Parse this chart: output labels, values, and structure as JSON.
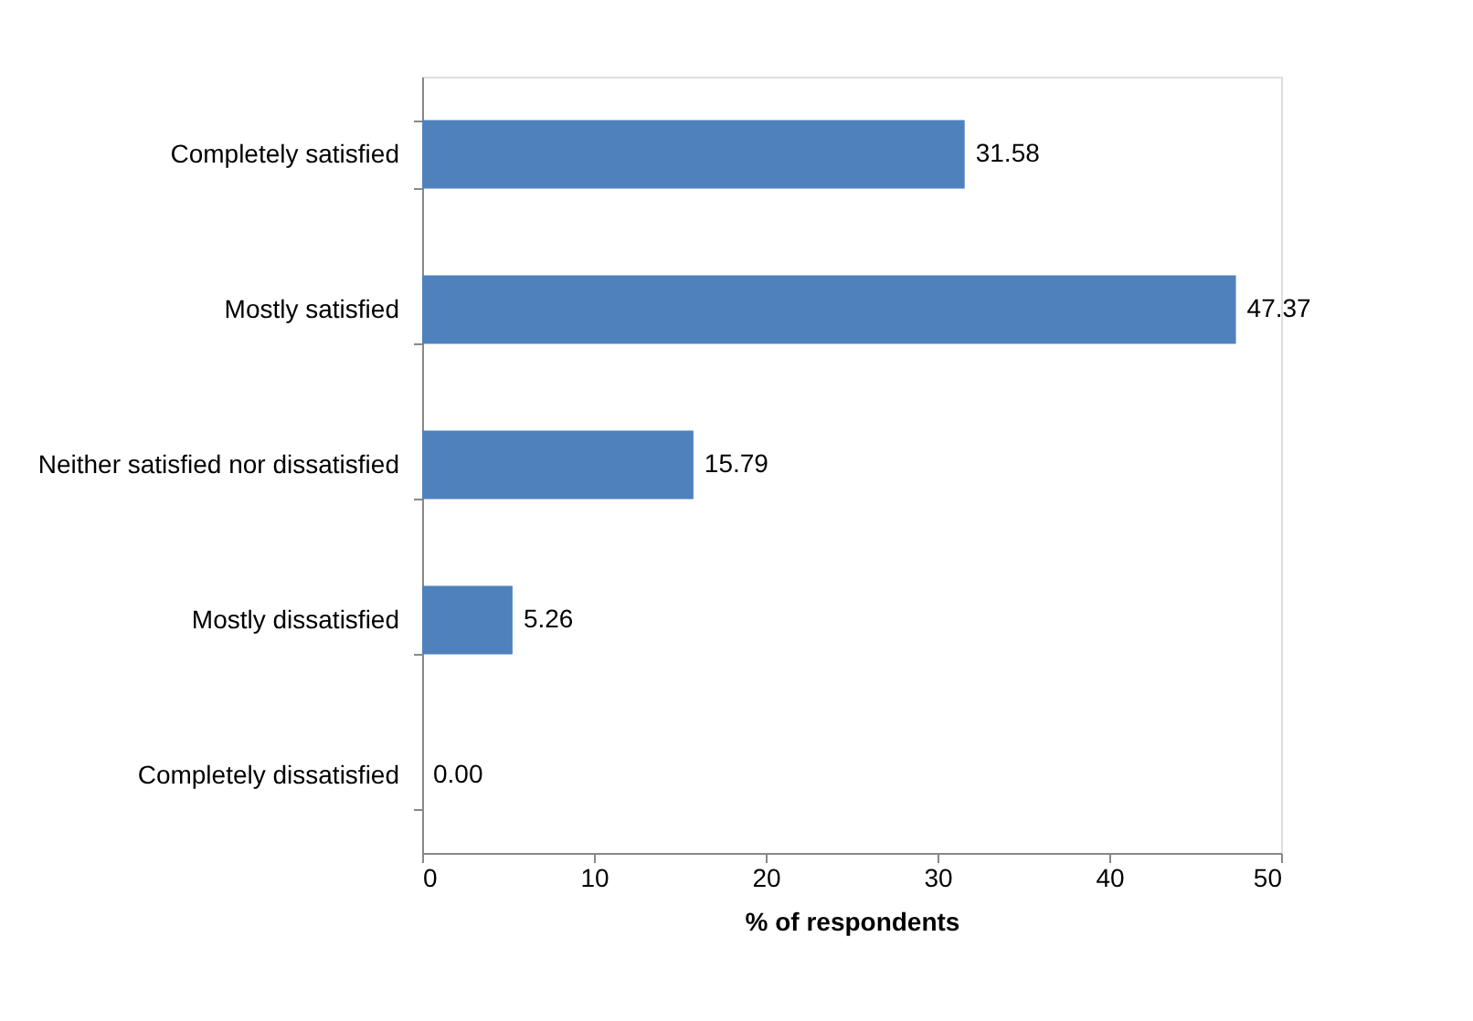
{
  "chart_data": {
    "type": "bar",
    "orientation": "horizontal",
    "categories": [
      "Completely satisfied",
      "Mostly satisfied",
      "Neither satisfied nor dissatisfied",
      "Mostly dissatisfied",
      "Completely dissatisfied"
    ],
    "values": [
      31.58,
      47.37,
      15.79,
      5.26,
      0.0
    ],
    "value_labels": [
      "31.58",
      "47.37",
      "15.79",
      "5.26",
      "0.00"
    ],
    "color": "#4f81bd",
    "xlabel": "% of respondents",
    "xlim": [
      0,
      50
    ],
    "xticks": [
      0,
      10,
      20,
      30,
      40,
      50
    ],
    "grid": false
  }
}
